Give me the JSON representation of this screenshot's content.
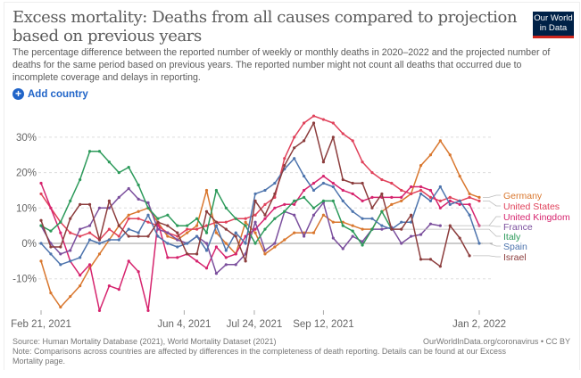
{
  "header": {
    "title": "Excess mortality: Deaths from all causes compared to projection based on previous years",
    "subtitle": "The percentage difference between the reported number of weekly or monthly deaths in 2020–2022 and the projected number of deaths for the same period based on previous years. The reported number might not count all deaths that occurred due to incomplete coverage and delays in reporting.",
    "logo_text": "Our World in Data",
    "add_country_label": "Add country",
    "add_country_icon": "plus-circle-icon"
  },
  "colors": {
    "accent": "#2064c8",
    "logo_bg": "#002147",
    "logo_bar": "#ce261e"
  },
  "chart_data": {
    "type": "line",
    "title": "Excess mortality: Deaths from all causes compared to projection based on previous years",
    "xlabel": "",
    "ylabel": "",
    "x_unit": "weeks since Feb 21, 2021",
    "x": [
      0,
      1,
      2,
      3,
      4,
      5,
      6,
      7,
      8,
      9,
      10,
      11,
      12,
      13,
      14,
      15,
      16,
      17,
      18,
      19,
      20,
      21,
      22,
      23,
      24,
      25,
      26,
      27,
      28,
      29,
      30,
      31,
      32,
      33,
      34,
      35,
      36,
      37,
      38,
      39,
      40,
      41,
      42,
      43,
      44,
      45
    ],
    "xlim": [
      0,
      45
    ],
    "ylim": [
      -19,
      36
    ],
    "grid": true,
    "y_ticks": [
      {
        "value": 30,
        "label": "30%"
      },
      {
        "value": 20,
        "label": "20%"
      },
      {
        "value": 10,
        "label": "10%"
      },
      {
        "value": 0,
        "label": "0%"
      },
      {
        "value": -10,
        "label": "-10%"
      }
    ],
    "x_ticks": [
      {
        "value": 0,
        "label": "Feb 21, 2021"
      },
      {
        "value": 14.7,
        "label": "Jun 4, 2021"
      },
      {
        "value": 21.9,
        "label": "Jul 24, 2021"
      },
      {
        "value": 29,
        "label": "Sep 12, 2021"
      },
      {
        "value": 45,
        "label": "Jan 2, 2022"
      }
    ],
    "legend_placement": "right",
    "series": [
      {
        "name": "Germany",
        "color": "#d9772e",
        "values": [
          -5,
          -14,
          -18,
          -15,
          -12,
          -7,
          -3,
          1,
          5,
          8,
          9,
          10,
          6,
          2,
          1,
          3,
          5,
          15,
          3,
          0,
          -3,
          6,
          3,
          -3,
          -1,
          1,
          3,
          3,
          3,
          8,
          6,
          6,
          5,
          4,
          4,
          9,
          11,
          12,
          14,
          22,
          25,
          29,
          25,
          19,
          14,
          13
        ]
      },
      {
        "name": "United States",
        "color": "#e0415a",
        "values": [
          14,
          10,
          6,
          3,
          2,
          3,
          1,
          4,
          2,
          7,
          7,
          6,
          5,
          3,
          2,
          4,
          4,
          5,
          6,
          6,
          7,
          7,
          8,
          11,
          13,
          24,
          30,
          34,
          36,
          35,
          34,
          31,
          29,
          23,
          20,
          18,
          17,
          15,
          14,
          15,
          13,
          12,
          13,
          12,
          13,
          12
        ]
      },
      {
        "name": "United Kingdom",
        "color": "#d6246e",
        "values": [
          17,
          10,
          3,
          -5,
          -9,
          -6,
          -19,
          -12,
          -13,
          -5,
          -8,
          -19,
          6,
          -4,
          -4,
          -3,
          -5,
          -7,
          -1,
          -4,
          -3,
          2,
          4,
          7,
          10,
          11,
          11,
          15,
          17,
          19,
          17,
          15,
          14,
          12,
          13,
          13,
          13,
          13,
          16,
          16,
          15,
          10,
          12,
          11,
          11,
          5
        ]
      },
      {
        "name": "France",
        "color": "#7b4f9d",
        "values": [
          5,
          0,
          -3,
          -2,
          4,
          5,
          10,
          10,
          13,
          15.5,
          12.5,
          11.5,
          4,
          3,
          1,
          0,
          2,
          0,
          -8.5,
          -6,
          -6,
          -3,
          6,
          -2,
          0,
          9,
          8,
          2,
          8,
          11.5,
          1.5,
          -1.5,
          2,
          0.5,
          4,
          4,
          4.5,
          0,
          2,
          2.5,
          5.5,
          5,
          null,
          null,
          null,
          null
        ]
      },
      {
        "name": "Italy",
        "color": "#2c9a5a",
        "values": [
          5,
          3.5,
          6,
          12,
          18,
          26,
          26,
          23,
          20,
          21.5,
          16.5,
          10,
          7,
          8,
          5,
          5,
          7,
          3,
          15,
          10,
          7,
          5,
          0,
          4,
          7,
          9,
          12,
          13,
          10,
          12,
          12,
          5,
          3.5,
          -0.5,
          4,
          9,
          4,
          null,
          null,
          null,
          null,
          null,
          null,
          null,
          null,
          null
        ]
      },
      {
        "name": "Spain",
        "color": "#4d74ad",
        "values": [
          0,
          -3,
          -6,
          -5,
          -4,
          1,
          0,
          1,
          1,
          4,
          3,
          8,
          2,
          0,
          -1,
          0,
          2,
          -2,
          5,
          -2,
          3,
          0,
          14,
          15,
          17,
          21,
          24,
          19,
          15,
          17,
          16,
          12,
          9,
          7,
          7,
          5,
          4,
          6,
          6,
          14,
          12,
          16,
          11,
          12,
          8,
          0
        ]
      },
      {
        "name": "Israel",
        "color": "#8c3d3d",
        "values": [
          6.5,
          -1,
          -1,
          7,
          11,
          11,
          1,
          12,
          5,
          2,
          2,
          2,
          6,
          5,
          3,
          -3,
          -3,
          9,
          6,
          4,
          2,
          -5,
          12,
          8,
          14,
          22,
          27,
          29,
          34,
          23,
          30,
          18,
          17,
          17,
          10,
          14,
          4,
          4,
          8,
          -4.5,
          -4.5,
          -6.5,
          5,
          1.5,
          -3.5,
          null
        ]
      }
    ]
  },
  "footer": {
    "source": "Source: Human Mortality Database (2021), World Mortality Dataset (2021)",
    "license": "OurWorldInData.org/coronavirus • CC BY",
    "note": "Note: Comparisons across countries are affected by differences in the completeness of death reporting. Details can be found at our Excess Mortality page."
  }
}
